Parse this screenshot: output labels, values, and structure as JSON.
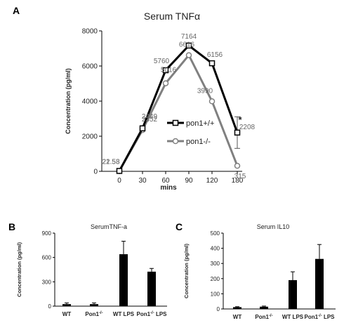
{
  "panels": {
    "a": "A",
    "b": "B",
    "c": "C"
  },
  "significance_marker": "*",
  "chart_data": [
    {
      "type": "line",
      "title": "Serum TNFα",
      "xlabel": "mins",
      "ylabel": "Concentration (pg/ml)",
      "x": [
        0,
        30,
        60,
        90,
        120,
        180
      ],
      "x_tick_labels": [
        "0",
        "30",
        "60",
        "90",
        "120",
        "180"
      ],
      "y_ticks": [
        0,
        2000,
        4000,
        6000,
        8000
      ],
      "ylim": [
        0,
        8000
      ],
      "legend_position": "right-center",
      "series": [
        {
          "name": "pon1+/+",
          "color": "#000000",
          "marker": "open-square",
          "values": [
            22.58,
            2449,
            5760,
            7164,
            6156,
            2208
          ],
          "labels": [
            "22.58",
            "2449",
            "5760",
            "7164",
            "6156",
            "2208"
          ],
          "error": [
            0,
            0,
            0,
            0,
            0,
            900
          ]
        },
        {
          "name": "pon1-/-",
          "color": "#808080",
          "marker": "open-circle",
          "values": [
            21.53,
            2352,
            5016,
            6616,
            3990,
            315
          ],
          "labels": [
            "21.53",
            "2352",
            "5016",
            "6616",
            "3990",
            "315"
          ],
          "error": [
            0,
            0,
            0,
            0,
            0,
            0
          ]
        }
      ],
      "annotations": [
        "*"
      ]
    },
    {
      "type": "bar",
      "title": "SerumTNF-a",
      "ylabel": "Concentration (pg/ml)",
      "categories": [
        "WT",
        "Pon1-/-",
        "WT LPS",
        "Pon1-/-LPS"
      ],
      "category_labels": [
        {
          "base": "WT",
          "sup": "",
          "tail": ""
        },
        {
          "base": "Pon1",
          "sup": "-/-",
          "tail": ""
        },
        {
          "base": "WT LPS",
          "sup": "",
          "tail": ""
        },
        {
          "base": "Pon1",
          "sup": "-/-",
          "tail": " LPS"
        }
      ],
      "values": [
        25,
        25,
        640,
        425
      ],
      "error": [
        15,
        15,
        160,
        40
      ],
      "y_ticks": [
        0,
        300,
        600,
        900
      ],
      "ylim": [
        0,
        900
      ],
      "color": "#000000"
    },
    {
      "type": "bar",
      "title": "Serum IL10",
      "ylabel": "Concentration (pg/ml)",
      "categories": [
        "WT",
        "Pon1-/-",
        "WT LPS",
        "Pon1-/-LPS"
      ],
      "category_labels": [
        {
          "base": "WT",
          "sup": "",
          "tail": ""
        },
        {
          "base": "Pon1",
          "sup": "-/-",
          "tail": ""
        },
        {
          "base": "WT LPS",
          "sup": "",
          "tail": ""
        },
        {
          "base": "Pon1",
          "sup": "-/-",
          "tail": " LPS"
        }
      ],
      "values": [
        12,
        15,
        190,
        330
      ],
      "error": [
        3,
        4,
        55,
        95
      ],
      "y_ticks": [
        0,
        100,
        200,
        300,
        400,
        500
      ],
      "ylim": [
        0,
        500
      ],
      "color": "#000000"
    }
  ]
}
